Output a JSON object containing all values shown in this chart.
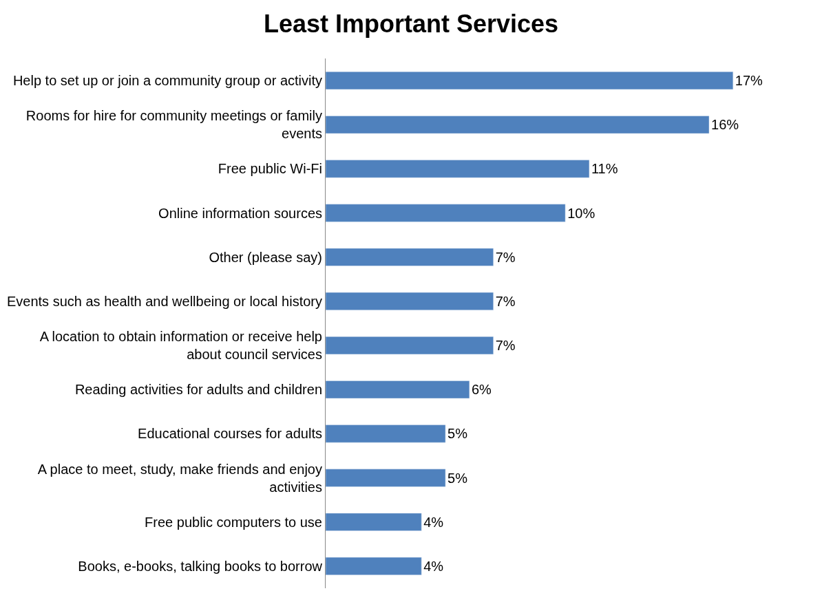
{
  "chart_data": {
    "type": "bar",
    "orientation": "horizontal",
    "title": "Least Important Services",
    "categories": [
      "Help to set up or join a community group or activity",
      "Rooms for hire for community meetings or family events",
      "Free public Wi-Fi",
      "Online information sources",
      "Other (please say)",
      "Events such as health and wellbeing or local history",
      "A location to obtain information or receive help about council services",
      "Reading activities for adults and children",
      "Educational courses for adults",
      "A place to meet, study, make friends and enjoy activities",
      "Free public computers to use",
      "Books, e-books, talking books to borrow"
    ],
    "values": [
      17,
      16,
      11,
      10,
      7,
      7,
      7,
      6,
      5,
      5,
      4,
      4
    ],
    "value_labels": [
      "17%",
      "16%",
      "11%",
      "10%",
      "7%",
      "7%",
      "7%",
      "6%",
      "5%",
      "5%",
      "4%",
      "4%"
    ],
    "color": "#4f81bd",
    "legend": false
  }
}
